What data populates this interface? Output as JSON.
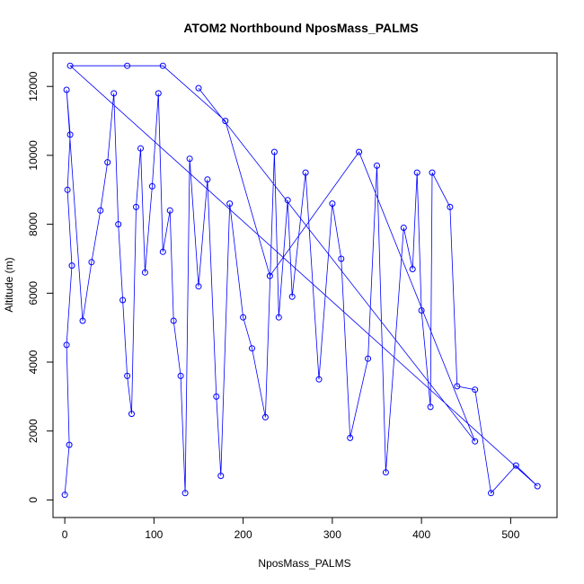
{
  "chart_data": {
    "type": "scatter",
    "title": "ATOM2 Northbound NposMass_PALMS",
    "xlabel": "NposMass_PALMS",
    "ylabel": "Altitude (m)",
    "xlim": [
      -13.2,
      552
    ],
    "ylim": [
      -510,
      12970
    ],
    "x_ticks": [
      0,
      100,
      200,
      300,
      400,
      500
    ],
    "y_ticks": [
      0,
      2000,
      4000,
      6000,
      8000,
      10000,
      12000
    ],
    "x_tick_labels": [
      "0",
      "100",
      "200",
      "300",
      "400",
      "500"
    ],
    "y_tick_labels": [
      "0",
      "2000",
      "4000",
      "6000",
      "8000",
      "10000",
      "12000"
    ],
    "grid": false,
    "legend": "none",
    "marker": "open-circle",
    "color": "#0000ff",
    "series": [
      {
        "values": [
          [
            0,
            150
          ],
          [
            5,
            1600
          ],
          [
            2,
            4500
          ],
          [
            8,
            6800
          ],
          [
            3,
            9000
          ],
          [
            6,
            10600
          ],
          [
            2,
            11900
          ],
          [
            20,
            5200
          ],
          [
            30,
            6900
          ],
          [
            40,
            8400
          ],
          [
            48,
            9800
          ],
          [
            55,
            11800
          ],
          [
            60,
            8000
          ],
          [
            65,
            5800
          ],
          [
            70,
            3600
          ],
          [
            75,
            2500
          ],
          [
            80,
            8500
          ],
          [
            85,
            10200
          ],
          [
            90,
            6600
          ],
          [
            98,
            9100
          ],
          [
            105,
            11800
          ],
          [
            110,
            7200
          ],
          [
            118,
            8400
          ],
          [
            122,
            5200
          ],
          [
            130,
            3600
          ],
          [
            135,
            200
          ],
          [
            140,
            9900
          ],
          [
            150,
            6200
          ],
          [
            160,
            9300
          ],
          [
            170,
            3000
          ],
          [
            175,
            700
          ],
          [
            185,
            8600
          ],
          [
            200,
            5300
          ],
          [
            210,
            4400
          ],
          [
            225,
            2400
          ],
          [
            235,
            10100
          ],
          [
            240,
            5300
          ],
          [
            250,
            8700
          ],
          [
            255,
            5900
          ],
          [
            270,
            9500
          ],
          [
            285,
            3500
          ],
          [
            300,
            8600
          ],
          [
            310,
            7000
          ],
          [
            320,
            1800
          ],
          [
            340,
            4100
          ],
          [
            350,
            9700
          ],
          [
            360,
            800
          ],
          [
            380,
            7900
          ],
          [
            390,
            6700
          ],
          [
            395,
            9500
          ],
          [
            400,
            5500
          ],
          [
            410,
            2700
          ],
          [
            412,
            9500
          ],
          [
            432,
            8500
          ],
          [
            440,
            3300
          ],
          [
            460,
            3200
          ],
          [
            478,
            200
          ],
          [
            506,
            1000
          ],
          [
            530,
            400
          ],
          [
            6,
            12600
          ],
          [
            70,
            12600
          ],
          [
            110,
            12600
          ],
          [
            180,
            11000
          ],
          [
            230,
            6500
          ],
          [
            330,
            10100
          ],
          [
            460,
            1700
          ],
          [
            150,
            11950
          ]
        ]
      }
    ]
  }
}
